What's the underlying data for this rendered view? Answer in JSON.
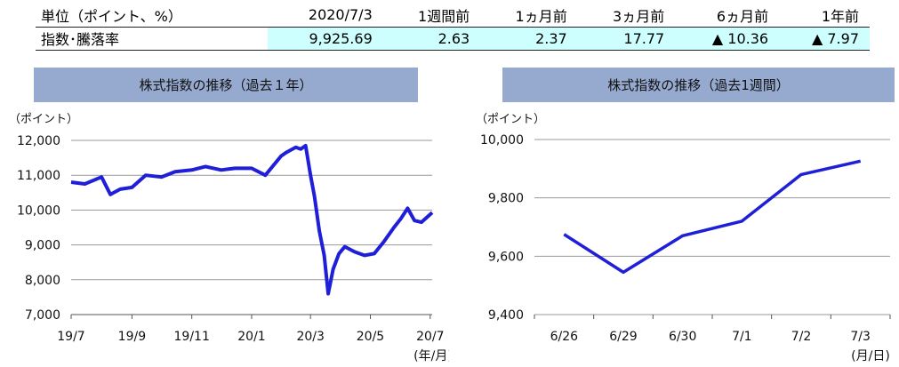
{
  "table": {
    "headers": [
      "単位（ポイント、%）",
      "2020/7/3",
      "1週間前",
      "1ヵ月前",
      "3ヵ月前",
      "6ヵ月前",
      "1年前"
    ],
    "row_label": "指数･騰落率",
    "values": [
      "9,925.69",
      "2.63",
      "2.37",
      "17.77",
      "▲ 10.36",
      "▲ 7.97"
    ]
  },
  "chart_data": [
    {
      "type": "line",
      "title": "株式指数の推移（過去１年）",
      "ylabel": "（ポイント）",
      "xlabel": "(年/月)",
      "ylim": [
        7000,
        12000
      ],
      "yticks": [
        "12,000",
        "11,000",
        "10,000",
        "9,000",
        "8,000",
        "7,000"
      ],
      "xticks": [
        "19/7",
        "19/9",
        "19/11",
        "20/1",
        "20/3",
        "20/5",
        "20/7"
      ],
      "grid": true,
      "color": "#1f1fd8",
      "series": [
        {
          "x": [
            "2019-07-01",
            "2019-07-15",
            "2019-08-01",
            "2019-08-10",
            "2019-08-20",
            "2019-09-01",
            "2019-09-15",
            "2019-10-01",
            "2019-10-15",
            "2019-11-01",
            "2019-11-15",
            "2019-12-01",
            "2019-12-15",
            "2020-01-01",
            "2020-01-15",
            "2020-01-31",
            "2020-02-05",
            "2020-02-15",
            "2020-02-20",
            "2020-02-25",
            "2020-03-01",
            "2020-03-05",
            "2020-03-10",
            "2020-03-15",
            "2020-03-19",
            "2020-03-24",
            "2020-03-30",
            "2020-04-05",
            "2020-04-15",
            "2020-04-25",
            "2020-05-05",
            "2020-05-15",
            "2020-05-25",
            "2020-06-01",
            "2020-06-08",
            "2020-06-15",
            "2020-06-22",
            "2020-07-03"
          ],
          "values": [
            10800,
            10750,
            10950,
            10450,
            10600,
            10650,
            11000,
            10950,
            11100,
            11150,
            11250,
            11150,
            11200,
            11200,
            11000,
            11550,
            11650,
            11800,
            11750,
            11850,
            11000,
            10400,
            9400,
            8700,
            7600,
            8300,
            8750,
            8950,
            8800,
            8700,
            8750,
            9100,
            9500,
            9750,
            10050,
            9700,
            9650,
            9925
          ]
        }
      ]
    },
    {
      "type": "line",
      "title": "株式指数の推移（過去1週間）",
      "ylabel": "（ポイント）",
      "xlabel": "(月/日)",
      "ylim": [
        9400,
        10000
      ],
      "yticks": [
        "10,000",
        "9,800",
        "9,600",
        "9,400"
      ],
      "categories": [
        "6/26",
        "6/29",
        "6/30",
        "7/1",
        "7/2",
        "7/3"
      ],
      "grid": true,
      "color": "#1f1fd8",
      "series": [
        {
          "values": [
            9675,
            9545,
            9670,
            9720,
            9880,
            9926
          ]
        }
      ]
    }
  ]
}
